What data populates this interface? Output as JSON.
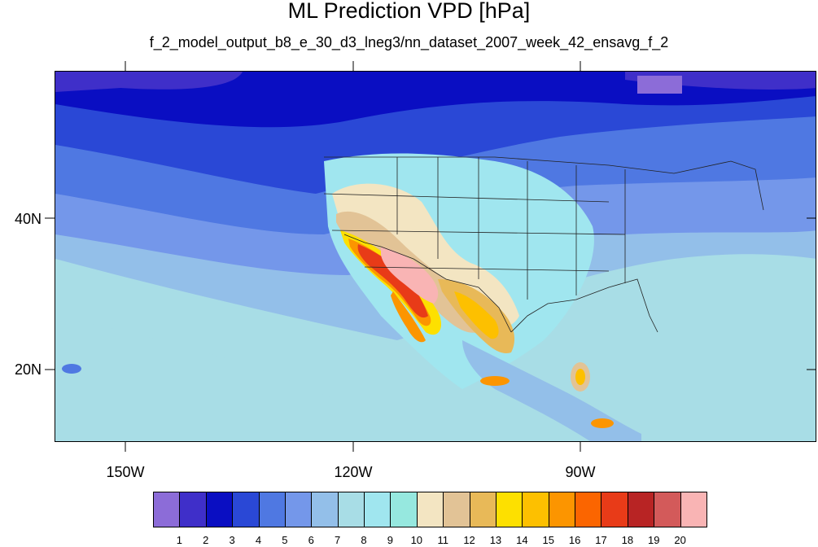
{
  "header": {
    "title": "ML Prediction VPD [hPa]",
    "subtitle": "f_2_model_output_b8_e_30_d3_lneg3/nn_dataset_2007_week_42_ensavg_f_2"
  },
  "axes": {
    "lat_labels": [
      "40N",
      "20N"
    ],
    "lon_labels": [
      "150W",
      "120W",
      "90W"
    ]
  },
  "legend": {
    "colors": [
      "#8c6cd8",
      "#3f2fc9",
      "#0a0ec2",
      "#2a48d6",
      "#4f78e2",
      "#7497ea",
      "#93bfe9",
      "#a8dde6",
      "#a0e6ef",
      "#96e8df",
      "#f3e5c2",
      "#e2c396",
      "#e8b958",
      "#fde000",
      "#fdc000",
      "#fc9500",
      "#fb6500",
      "#e83b18",
      "#b82424",
      "#d35a5a",
      "#f9b4b4"
    ],
    "labels": [
      "1",
      "2",
      "3",
      "4",
      "5",
      "6",
      "7",
      "8",
      "9",
      "10",
      "11",
      "12",
      "13",
      "14",
      "15",
      "16",
      "17",
      "18",
      "19",
      "20"
    ]
  }
}
